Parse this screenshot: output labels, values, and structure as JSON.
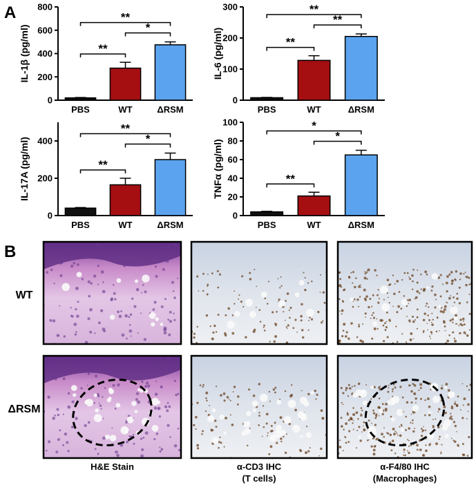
{
  "panel_labels": [
    "A",
    "B"
  ],
  "chart_data": [
    {
      "type": "bar",
      "y_label": "IL-1β (pg/ml)",
      "categories": [
        "PBS",
        "WT",
        "ΔRSM"
      ],
      "values": [
        20,
        275,
        475
      ],
      "errors": [
        3,
        50,
        25
      ],
      "colors": [
        "#111111",
        "#a50f12",
        "#5ba3ee"
      ],
      "ylim": [
        0,
        800
      ],
      "yticks": [
        0,
        200,
        400,
        600,
        800
      ],
      "annotations": [
        "**",
        "*",
        "**"
      ]
    },
    {
      "type": "bar",
      "y_label": "IL-6 (pg/ml)",
      "categories": [
        "PBS",
        "WT",
        "ΔRSM"
      ],
      "values": [
        8,
        128,
        205
      ],
      "errors": [
        1,
        15,
        8
      ],
      "colors": [
        "#111111",
        "#a50f12",
        "#5ba3ee"
      ],
      "ylim": [
        0,
        300
      ],
      "yticks": [
        0,
        100,
        200,
        300
      ],
      "annotations": [
        "**",
        "**",
        "**"
      ]
    },
    {
      "type": "bar",
      "y_label": "IL-17A (pg/ml)",
      "categories": [
        "PBS",
        "WT",
        "ΔRSM"
      ],
      "values": [
        40,
        165,
        300
      ],
      "errors": [
        3,
        35,
        35
      ],
      "colors": [
        "#111111",
        "#a50f12",
        "#5ba3ee"
      ],
      "ylim": [
        0,
        500
      ],
      "yticks": [
        0,
        200,
        400
      ],
      "annotations": [
        "**",
        "*",
        "**"
      ]
    },
    {
      "type": "bar",
      "y_label": "TNFα (pg/ml)",
      "categories": [
        "PBS",
        "WT",
        "ΔRSM"
      ],
      "values": [
        4,
        21,
        65
      ],
      "errors": [
        0.5,
        4,
        5
      ],
      "colors": [
        "#111111",
        "#a50f12",
        "#5ba3ee"
      ],
      "ylim": [
        0,
        100
      ],
      "yticks": [
        0,
        20,
        40,
        60,
        80,
        100
      ],
      "annotations": [
        "**",
        "*",
        "*"
      ]
    }
  ],
  "histology": {
    "rows": [
      "WT",
      "ΔRSM"
    ],
    "columns": [
      [
        "H&E Stain"
      ],
      [
        "α-CD3 IHC",
        "(T cells)"
      ],
      [
        "α-F4/80 IHC",
        "(Macrophages)"
      ]
    ]
  }
}
